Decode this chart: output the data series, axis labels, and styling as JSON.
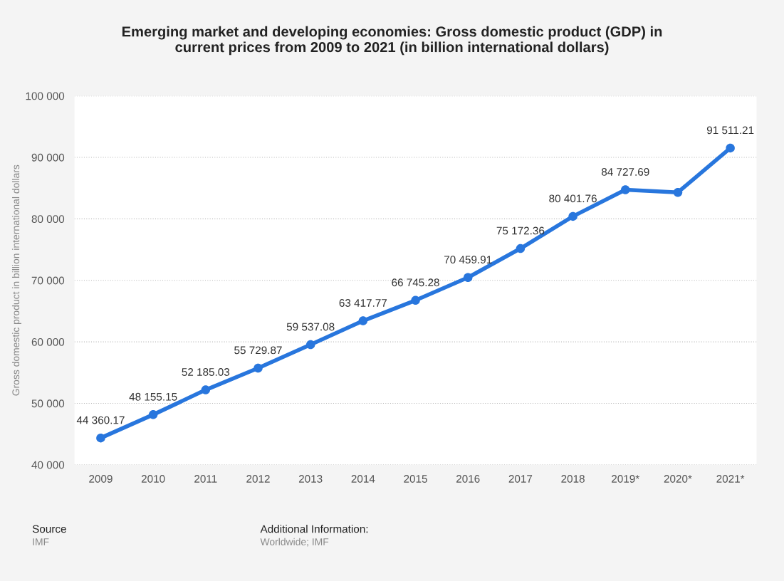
{
  "chart_data": {
    "type": "line",
    "title": "Emerging market and developing economies: Gross domestic product (GDP) in\ncurrent prices from 2009 to 2021 (in billion international dollars)",
    "ylabel": "Gross domestic product in billion international dollars",
    "categories": [
      "2009",
      "2010",
      "2011",
      "2012",
      "2013",
      "2014",
      "2015",
      "2016",
      "2017",
      "2018",
      "2019*",
      "2020*",
      "2021*"
    ],
    "series": [
      {
        "color": "#2876dd",
        "values": [
          44360.17,
          48155.15,
          52185.03,
          55729.87,
          59537.08,
          63417.77,
          66745.28,
          70459.91,
          75172.36,
          80401.76,
          84727.69,
          84300,
          91511.21
        ],
        "value_labels": [
          "44 360.17",
          "48 155.15",
          "52 185.03",
          "55 729.87",
          "59 537.08",
          "63 417.77",
          "66 745.28",
          "70 459.91",
          "75 172.36",
          "80 401.76",
          "84 727.69",
          null,
          "91 511.21"
        ]
      }
    ],
    "ylim": [
      40000,
      100000
    ],
    "yticks": [
      {
        "value": 40000,
        "label": "40 000"
      },
      {
        "value": 50000,
        "label": "50 000"
      },
      {
        "value": 60000,
        "label": "60 000"
      },
      {
        "value": 70000,
        "label": "70 000"
      },
      {
        "value": 80000,
        "label": "80 000"
      },
      {
        "value": 90000,
        "label": "90 000"
      },
      {
        "value": 100000,
        "label": "100 000"
      }
    ],
    "grid": "y",
    "marker": "circle",
    "line_style": "solid",
    "annotations": [
      "Source",
      "IMF",
      "Additional Information:",
      "Worldwide; IMF"
    ]
  }
}
